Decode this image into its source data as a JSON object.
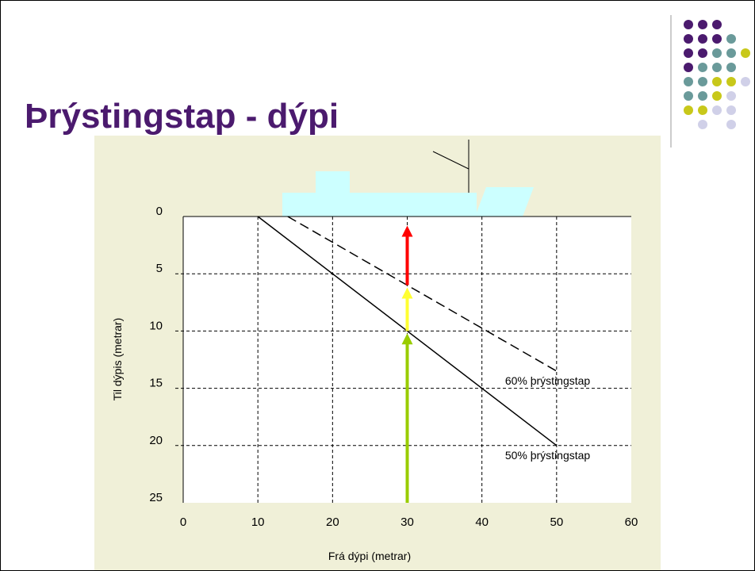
{
  "title": "Þrýstingstap - dýpi",
  "chart_data": {
    "type": "line",
    "xlabel": "Frá dýpi (metrar)",
    "ylabel": "Til dýpis (metrar)",
    "xlim": [
      0,
      60
    ],
    "xticks": [
      0,
      10,
      20,
      30,
      40,
      50,
      60
    ],
    "ylim": [
      0,
      25
    ],
    "yticks": [
      0,
      5,
      10,
      15,
      20,
      25
    ],
    "y_reversed": true,
    "grid": true,
    "series": [
      {
        "name": "60% þrýstingstap",
        "color": "#000000",
        "dash": "dashed",
        "x": [
          14,
          50
        ],
        "values": [
          0,
          13.5
        ]
      },
      {
        "name": "50% þrýstingstap",
        "color": "#000000",
        "dash": "solid",
        "x": [
          10,
          50
        ],
        "values": [
          0,
          20
        ]
      }
    ],
    "arrows": [
      {
        "color": "#ff0000",
        "x": 30,
        "from": 6,
        "to": 0.8
      },
      {
        "color": "#ffff33",
        "x": 30,
        "from": 10,
        "to": 6.2
      },
      {
        "color": "#99cc00",
        "x": 30,
        "from": 25,
        "to": 10.2
      }
    ]
  }
}
